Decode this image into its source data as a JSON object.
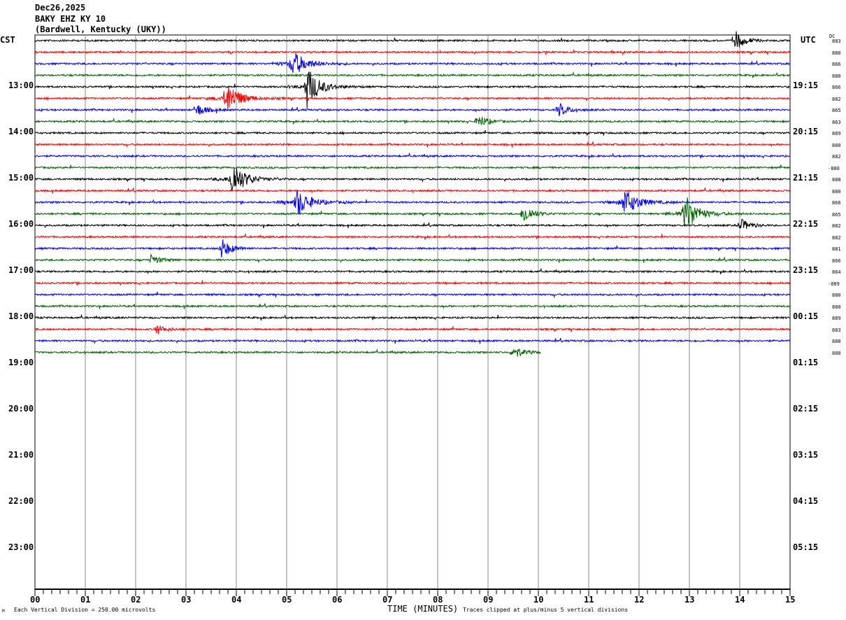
{
  "header": {
    "date": "Dec26,2025",
    "station": "BAKY EHZ KY 10",
    "location": "(Bardwell, Kentucky (UKY))"
  },
  "left_axis_title": "CST",
  "right_axis_title": "UTC",
  "dc_title": "DC",
  "footer": {
    "scale_note": "Each Vertical Division =  250.00 microvolts",
    "xlabel": "TIME (MINUTES)",
    "clip_note": "Traces clipped at plus/minus 5 vertical divisions",
    "corner_mark": "M"
  },
  "chart_data": {
    "type": "line",
    "xlabel": "TIME (MINUTES)",
    "xlim": [
      0,
      15
    ],
    "x_ticks": [
      "00",
      "01",
      "02",
      "03",
      "04",
      "05",
      "06",
      "07",
      "08",
      "09",
      "10",
      "11",
      "12",
      "13",
      "14",
      "15"
    ],
    "left_ticks": [
      "13:00",
      "14:00",
      "15:00",
      "16:00",
      "17:00",
      "18:00",
      "19:00",
      "20:00",
      "21:00",
      "22:00",
      "23:00"
    ],
    "right_ticks": [
      "19:15",
      "20:15",
      "21:15",
      "22:15",
      "23:15",
      "00:15",
      "01:15",
      "02:15",
      "03:15",
      "04:15",
      "05:15"
    ],
    "grid": true,
    "trace_colors": [
      "#000000",
      "#ff0000",
      "#0000ff",
      "#006400"
    ],
    "traces_per_hour": 4,
    "minutes_per_trace": 15,
    "dc_offsets": [
      "883",
      "880",
      "866",
      "880",
      "866",
      "882",
      "865",
      "863",
      "889",
      "880",
      "882",
      "-880",
      "888",
      "880",
      "866",
      "865",
      "882",
      "882",
      "881",
      "866",
      "864",
      "-889",
      "880",
      "880",
      "889",
      "883",
      "888",
      "880"
    ],
    "last_trace_end_minute": 10.05,
    "events": [
      {
        "trace": 0,
        "minute": 13.9,
        "amplitude": 3
      },
      {
        "trace": 2,
        "minute": 5.1,
        "amplitude": 4
      },
      {
        "trace": 4,
        "minute": 5.4,
        "amplitude": 6
      },
      {
        "trace": 5,
        "minute": 3.8,
        "amplitude": 5
      },
      {
        "trace": 6,
        "minute": 3.2,
        "amplitude": 2
      },
      {
        "trace": 6,
        "minute": 10.4,
        "amplitude": 2
      },
      {
        "trace": 7,
        "minute": 8.8,
        "amplitude": 2
      },
      {
        "trace": 12,
        "minute": 3.9,
        "amplitude": 6
      },
      {
        "trace": 14,
        "minute": 5.2,
        "amplitude": 4
      },
      {
        "trace": 14,
        "minute": 11.7,
        "amplitude": 4
      },
      {
        "trace": 15,
        "minute": 9.7,
        "amplitude": 3
      },
      {
        "trace": 15,
        "minute": 12.9,
        "amplitude": 6
      },
      {
        "trace": 16,
        "minute": 14.0,
        "amplitude": 2
      },
      {
        "trace": 18,
        "minute": 3.7,
        "amplitude": 3
      },
      {
        "trace": 19,
        "minute": 2.3,
        "amplitude": 1.5
      },
      {
        "trace": 25,
        "minute": 2.4,
        "amplitude": 1.5
      },
      {
        "trace": 27,
        "minute": 9.5,
        "amplitude": 2
      }
    ],
    "units": "microvolts",
    "vertical_division": 250.0
  }
}
